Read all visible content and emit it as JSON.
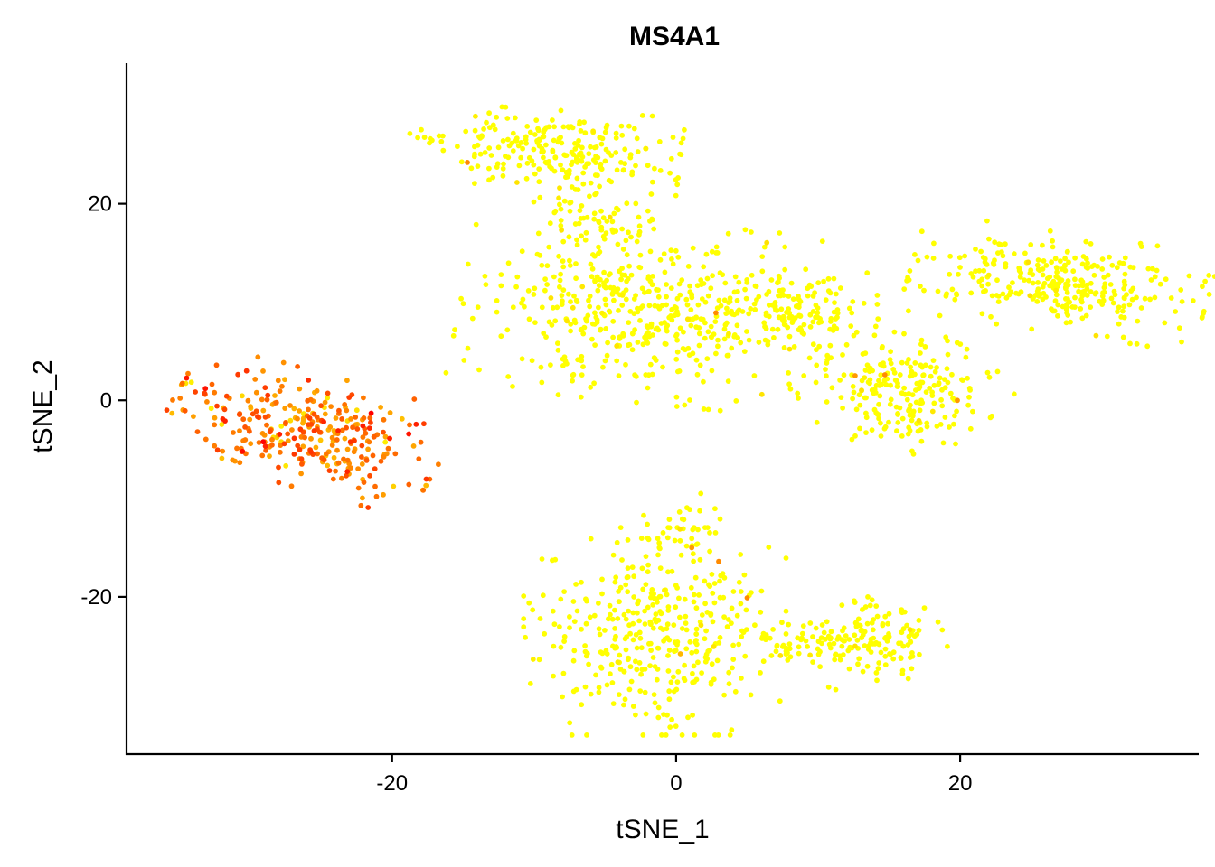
{
  "chart_data": {
    "type": "scatter",
    "title": "MS4A1",
    "xlabel": "tSNE_1",
    "ylabel": "tSNE_2",
    "xlim": [
      -38.7,
      36.8
    ],
    "ylim": [
      -36,
      34.3
    ],
    "x_ticks": [
      -20,
      0,
      20
    ],
    "y_ticks": [
      -20,
      0,
      20
    ],
    "x_tick_labels": [
      "-20",
      "0",
      "20"
    ],
    "y_tick_labels": [
      "-20",
      "0",
      "20"
    ],
    "grid": false,
    "legend": "none",
    "color_scale": {
      "low": "#ffff00",
      "mid": "#ff9900",
      "high": "#ff0000"
    },
    "clusters": [
      {
        "id": "b-cells",
        "cx": -26,
        "cy": -3,
        "sx": 4.5,
        "sy": 2.6,
        "angle": -22,
        "n": 320,
        "expr_mean": 0.62
      },
      {
        "id": "top-arm",
        "cx": -8,
        "cy": 25.5,
        "sx": 3.8,
        "sy": 1.8,
        "angle": -5,
        "n": 230,
        "expr_mean": 0.0
      },
      {
        "id": "top-left-tail",
        "cx": -17,
        "cy": 26.5,
        "sx": 1.2,
        "sy": 0.5,
        "angle": 0,
        "n": 10,
        "expr_mean": 0.0
      },
      {
        "id": "neck",
        "cx": -6,
        "cy": 18.5,
        "sx": 2.2,
        "sy": 1.6,
        "angle": -20,
        "n": 60,
        "expr_mean": 0.0
      },
      {
        "id": "main-body",
        "cx": -2,
        "cy": 9,
        "sx": 6.0,
        "sy": 4.2,
        "angle": -8,
        "n": 480,
        "expr_mean": 0.0
      },
      {
        "id": "main-right",
        "cx": 8,
        "cy": 9,
        "sx": 2.8,
        "sy": 1.8,
        "angle": 0,
        "n": 110,
        "expr_mean": 0.0
      },
      {
        "id": "diag-arm",
        "cx": 16,
        "cy": 1,
        "sx": 3.0,
        "sy": 2.8,
        "angle": -35,
        "n": 220,
        "expr_mean": 0.0
      },
      {
        "id": "right-cluster",
        "cx": 27,
        "cy": 12,
        "sx": 4.8,
        "sy": 2.3,
        "angle": -12,
        "n": 300,
        "expr_mean": 0.0
      },
      {
        "id": "bottom-main",
        "cx": -1.5,
        "cy": -23.5,
        "sx": 4.2,
        "sy": 4.8,
        "angle": 0,
        "n": 380,
        "expr_mean": 0.0
      },
      {
        "id": "bottom-stem",
        "cx": 1,
        "cy": -13,
        "sx": 2.0,
        "sy": 1.6,
        "angle": 0,
        "n": 35,
        "expr_mean": 0.0
      },
      {
        "id": "bottom-bridge",
        "cx": 9,
        "cy": -24.5,
        "sx": 2.0,
        "sy": 0.9,
        "angle": 0,
        "n": 45,
        "expr_mean": 0.0
      },
      {
        "id": "bottom-right",
        "cx": 14,
        "cy": -24.5,
        "sx": 2.2,
        "sy": 2.0,
        "angle": 20,
        "n": 130,
        "expr_mean": 0.0
      }
    ],
    "outliers": [
      {
        "x": -14.7,
        "y": 24.2,
        "expr": 0.55
      },
      {
        "x": 2.8,
        "y": 8.9,
        "expr": 0.55
      },
      {
        "x": 12.6,
        "y": 2.5,
        "expr": 0.5
      },
      {
        "x": 14.7,
        "y": 2.6,
        "expr": 0.55
      },
      {
        "x": 19.8,
        "y": 0.0,
        "expr": 0.5
      },
      {
        "x": 1.1,
        "y": -15.0,
        "expr": 0.5
      },
      {
        "x": 3.0,
        "y": -16.4,
        "expr": 0.55
      },
      {
        "x": 5.0,
        "y": -20.1,
        "expr": 0.55
      },
      {
        "x": 0.3,
        "y": -25.8,
        "expr": 0.35
      }
    ]
  }
}
